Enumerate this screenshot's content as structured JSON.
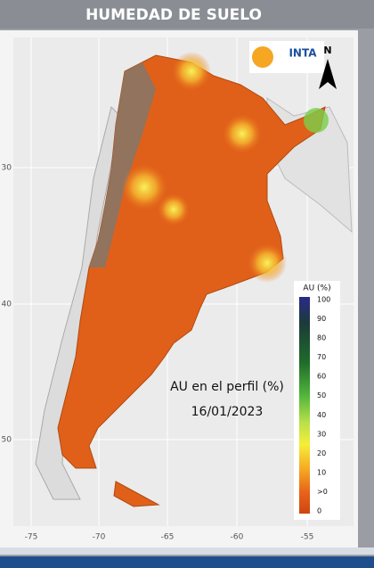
{
  "header": {
    "title": "HUMEDAD DE SUELO"
  },
  "map": {
    "annotation": "AU en el perfil (%)",
    "date": "16/01/2023",
    "legend": {
      "title": "AU (%)",
      "labels": [
        "100",
        "90",
        "80",
        "70",
        "60",
        "50",
        "40",
        "30",
        "20",
        "10",
        ">0",
        "0"
      ]
    },
    "x_labels": [
      "-75",
      "-70",
      "-65",
      "-60",
      "-55"
    ],
    "y_labels": [
      "30",
      "40",
      "50"
    ],
    "logo": {
      "text": "INTA",
      "north": "N"
    }
  }
}
